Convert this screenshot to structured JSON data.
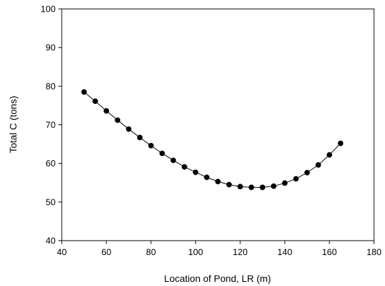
{
  "chart_data": {
    "type": "line",
    "title": "",
    "xlabel": "Location of Pond, LR (m)",
    "ylabel": "Total C (tons)",
    "xlim": [
      40,
      180
    ],
    "ylim": [
      40,
      100
    ],
    "xticks": [
      40,
      60,
      80,
      100,
      120,
      140,
      160,
      180
    ],
    "yticks": [
      40,
      50,
      60,
      70,
      80,
      90,
      100
    ],
    "grid": false,
    "legend": "none",
    "line_color": "#000000",
    "marker_color": "#000000",
    "series": [
      {
        "x": [
          50,
          55,
          60,
          65,
          70,
          75,
          80,
          85,
          90,
          95,
          100,
          105,
          110,
          115,
          120,
          125,
          130,
          135,
          140,
          145,
          150,
          155,
          160,
          165
        ],
        "y": [
          78.5,
          76.1,
          73.6,
          71.2,
          68.9,
          66.7,
          64.6,
          62.6,
          60.8,
          59.1,
          57.7,
          56.4,
          55.3,
          54.5,
          54.0,
          53.8,
          53.8,
          54.1,
          54.9,
          56.0,
          57.6,
          59.6,
          62.2,
          65.2
        ]
      }
    ]
  }
}
